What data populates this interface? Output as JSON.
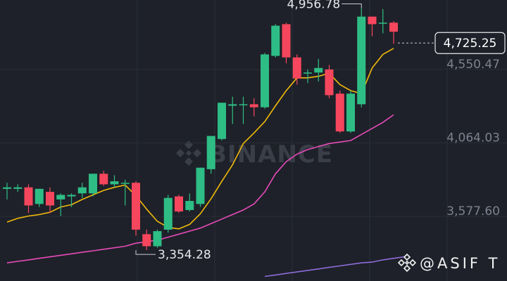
{
  "colors": {
    "background": "#1e2129",
    "grid": "#2b2f38",
    "up": "#2ebd85",
    "down": "#f6465d",
    "ma_short": "#f0b90b",
    "ma_mid": "#e64bb8",
    "ma_long": "#8e6bd8",
    "tick_text": "#7d8290",
    "annotation": "#e6e8ec"
  },
  "watermark": {
    "text": "BINANCE",
    "icon": "binance-logo-icon"
  },
  "credit": {
    "text": "@ASIF T",
    "icon": "binance-logo-icon"
  },
  "chart_data": {
    "type": "candlestick",
    "y_axis": {
      "ticks": [
        4550.47,
        4064.03,
        3577.6
      ],
      "tick_labels": [
        "4,550.47",
        "4,064.03",
        "3,577.60"
      ],
      "range": [
        3150,
        5010
      ],
      "position": "right"
    },
    "current_price": {
      "value": 4725.25,
      "label": "4,725.25"
    },
    "annotations": [
      {
        "type": "high",
        "value": 4956.78,
        "label": "4,956.78",
        "candle_index": 33
      },
      {
        "type": "low",
        "value": 3354.28,
        "label": "3,354.28",
        "candle_index": 12
      }
    ],
    "candles": [
      {
        "o": 3760,
        "h": 3800,
        "l": 3690,
        "c": 3770
      },
      {
        "o": 3760,
        "h": 3790,
        "l": 3740,
        "c": 3770
      },
      {
        "o": 3770,
        "h": 3790,
        "l": 3600,
        "c": 3650
      },
      {
        "o": 3660,
        "h": 3760,
        "l": 3640,
        "c": 3760
      },
      {
        "o": 3740,
        "h": 3770,
        "l": 3600,
        "c": 3650
      },
      {
        "o": 3690,
        "h": 3730,
        "l": 3580,
        "c": 3720
      },
      {
        "o": 3710,
        "h": 3730,
        "l": 3640,
        "c": 3720
      },
      {
        "o": 3730,
        "h": 3800,
        "l": 3700,
        "c": 3770
      },
      {
        "o": 3730,
        "h": 3860,
        "l": 3710,
        "c": 3860
      },
      {
        "o": 3860,
        "h": 3880,
        "l": 3780,
        "c": 3790
      },
      {
        "o": 3790,
        "h": 3850,
        "l": 3770,
        "c": 3810
      },
      {
        "o": 3800,
        "h": 3820,
        "l": 3650,
        "c": 3800
      },
      {
        "o": 3800,
        "h": 3810,
        "l": 3450,
        "c": 3490
      },
      {
        "o": 3460,
        "h": 3490,
        "l": 3354.28,
        "c": 3380
      },
      {
        "o": 3380,
        "h": 3490,
        "l": 3370,
        "c": 3480
      },
      {
        "o": 3490,
        "h": 3720,
        "l": 3470,
        "c": 3700
      },
      {
        "o": 3710,
        "h": 3720,
        "l": 3600,
        "c": 3610
      },
      {
        "o": 3620,
        "h": 3730,
        "l": 3610,
        "c": 3680
      },
      {
        "o": 3660,
        "h": 3900,
        "l": 3640,
        "c": 3900
      },
      {
        "o": 3890,
        "h": 4110,
        "l": 3860,
        "c": 4110
      },
      {
        "o": 4090,
        "h": 4330,
        "l": 4080,
        "c": 4330
      },
      {
        "o": 4310,
        "h": 4370,
        "l": 4190,
        "c": 4320
      },
      {
        "o": 4320,
        "h": 4370,
        "l": 4190,
        "c": 4320
      },
      {
        "o": 4320,
        "h": 4360,
        "l": 4240,
        "c": 4300
      },
      {
        "o": 4300,
        "h": 4660,
        "l": 4290,
        "c": 4650
      },
      {
        "o": 4640,
        "h": 4850,
        "l": 4630,
        "c": 4840
      },
      {
        "o": 4850,
        "h": 4860,
        "l": 4590,
        "c": 4630
      },
      {
        "o": 4630,
        "h": 4650,
        "l": 4450,
        "c": 4490
      },
      {
        "o": 4530,
        "h": 4550,
        "l": 4460,
        "c": 4530
      },
      {
        "o": 4530,
        "h": 4620,
        "l": 4470,
        "c": 4560
      },
      {
        "o": 4550,
        "h": 4580,
        "l": 4360,
        "c": 4380
      },
      {
        "o": 4390,
        "h": 4410,
        "l": 4130,
        "c": 4140
      },
      {
        "o": 4140,
        "h": 4410,
        "l": 4130,
        "c": 4390
      },
      {
        "o": 4320,
        "h": 4956.78,
        "l": 4300,
        "c": 4900
      },
      {
        "o": 4900,
        "h": 4900,
        "l": 4770,
        "c": 4850
      },
      {
        "o": 4860,
        "h": 4950,
        "l": 4790,
        "c": 4860
      },
      {
        "o": 4860,
        "h": 4870,
        "l": 4720,
        "c": 4800
      }
    ],
    "ma_short": [
      3540,
      3565,
      3580,
      3590,
      3605,
      3640,
      3655,
      3690,
      3720,
      3750,
      3770,
      3785,
      3715,
      3625,
      3545,
      3505,
      3495,
      3525,
      3595,
      3695,
      3810,
      3920,
      4060,
      4130,
      4205,
      4310,
      4410,
      4495,
      4495,
      4505,
      4525,
      4450,
      4410,
      4390,
      4560,
      4650,
      4690
    ],
    "ma_mid": [
      3270,
      3280,
      3290,
      3300,
      3310,
      3320,
      3330,
      3340,
      3350,
      3360,
      3370,
      3380,
      3400,
      3410,
      3420,
      3440,
      3460,
      3480,
      3500,
      3530,
      3560,
      3590,
      3620,
      3660,
      3740,
      3860,
      3940,
      3990,
      4020,
      4040,
      4060,
      4070,
      4080,
      4120,
      4160,
      4200,
      4250
    ],
    "ma_long": [
      3180,
      3190,
      3200,
      3210,
      3220,
      3230,
      3240,
      3250,
      3260,
      3270,
      3275,
      3290,
      3300,
      3310
    ],
    "ma_long_start": 24
  }
}
